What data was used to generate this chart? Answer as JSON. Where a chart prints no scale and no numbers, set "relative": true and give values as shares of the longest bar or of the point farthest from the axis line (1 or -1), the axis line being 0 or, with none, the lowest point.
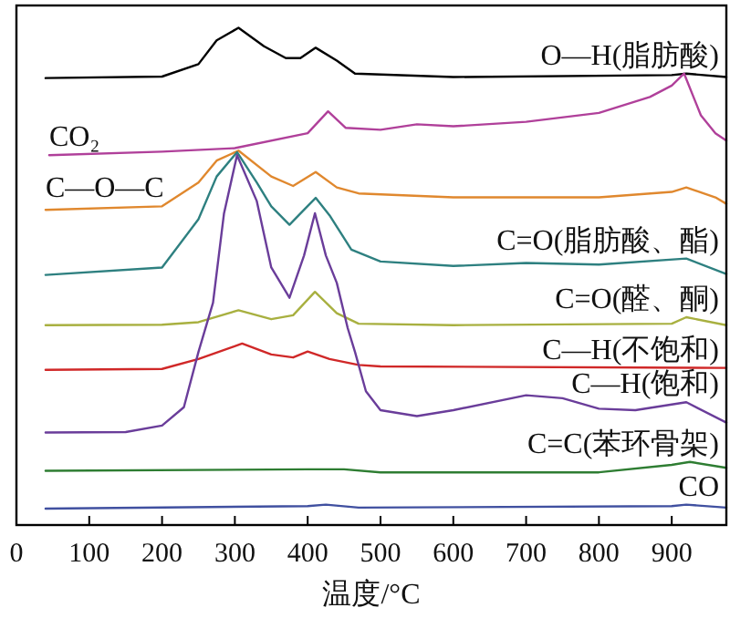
{
  "chart_data": {
    "type": "line",
    "relative": true,
    "xlabel": "温度/°C",
    "xlim": [
      0,
      975
    ],
    "xticks": [
      0,
      100,
      200,
      300,
      400,
      500,
      600,
      700,
      800,
      900
    ],
    "marker": "none",
    "line_style": "solid",
    "series": [
      {
        "name": "O—H(脂肪酸)",
        "color": "#000000",
        "x": [
          40,
          200,
          250,
          275,
          305,
          340,
          370,
          390,
          411,
          440,
          465,
          600,
          900,
          920,
          975
        ],
        "values": [
          0.899,
          0.902,
          0.927,
          0.975,
          1.0,
          0.963,
          0.939,
          0.939,
          0.96,
          0.934,
          0.908,
          0.901,
          0.905,
          0.908,
          0.901
        ]
      },
      {
        "name": "CO₂",
        "color": "#b0409a",
        "x": [
          45,
          200,
          300,
          400,
          428,
          452,
          500,
          550,
          600,
          700,
          800,
          870,
          900,
          917,
          940,
          960,
          975
        ],
        "values": [
          0.744,
          0.751,
          0.758,
          0.788,
          0.832,
          0.799,
          0.795,
          0.806,
          0.802,
          0.811,
          0.829,
          0.861,
          0.884,
          0.908,
          0.824,
          0.788,
          0.773
        ]
      },
      {
        "name": "C—O—C",
        "color": "#e0882e",
        "x": [
          40,
          200,
          250,
          275,
          305,
          350,
          380,
          411,
          440,
          470,
          600,
          800,
          900,
          920,
          960,
          975
        ],
        "values": [
          0.634,
          0.641,
          0.689,
          0.733,
          0.753,
          0.701,
          0.682,
          0.71,
          0.679,
          0.667,
          0.659,
          0.659,
          0.67,
          0.679,
          0.659,
          0.646
        ]
      },
      {
        "name": "C=O(脂肪酸、酯)",
        "color": "#2e8080",
        "x": [
          40,
          200,
          250,
          275,
          303,
          330,
          350,
          375,
          395,
          411,
          430,
          460,
          500,
          600,
          700,
          800,
          920,
          975
        ],
        "values": [
          0.503,
          0.518,
          0.615,
          0.701,
          0.75,
          0.689,
          0.641,
          0.604,
          0.634,
          0.658,
          0.623,
          0.554,
          0.53,
          0.521,
          0.527,
          0.524,
          0.536,
          0.505
        ]
      },
      {
        "name": "C=O(醛、酮)",
        "color": "#a8b040",
        "x": [
          40,
          200,
          250,
          305,
          350,
          380,
          410,
          440,
          470,
          600,
          900,
          920,
          975
        ],
        "values": [
          0.402,
          0.403,
          0.408,
          0.432,
          0.414,
          0.422,
          0.469,
          0.426,
          0.405,
          0.402,
          0.405,
          0.418,
          0.402
        ]
      },
      {
        "name": "C—H(不饱和)",
        "color": "#d02828",
        "x": [
          40,
          200,
          250,
          310,
          350,
          380,
          400,
          430,
          470,
          500,
          975
        ],
        "values": [
          0.312,
          0.314,
          0.334,
          0.365,
          0.343,
          0.337,
          0.349,
          0.334,
          0.322,
          0.319,
          0.316
        ]
      },
      {
        "name": "C—H(饱和)",
        "color": "#6a3d9a",
        "x": [
          40,
          150,
          200,
          230,
          250,
          270,
          285,
          303,
          330,
          350,
          375,
          395,
          410,
          425,
          440,
          455,
          465,
          480,
          500,
          550,
          600,
          700,
          750,
          800,
          850,
          920,
          975
        ],
        "values": [
          0.186,
          0.187,
          0.2,
          0.237,
          0.348,
          0.447,
          0.626,
          0.744,
          0.652,
          0.518,
          0.457,
          0.542,
          0.627,
          0.542,
          0.487,
          0.396,
          0.348,
          0.269,
          0.231,
          0.219,
          0.231,
          0.261,
          0.255,
          0.234,
          0.231,
          0.247,
          0.206
        ]
      },
      {
        "name": "C=C(苯环骨架)",
        "color": "#2e7d32",
        "x": [
          40,
          400,
          450,
          500,
          800,
          900,
          925,
          975
        ],
        "values": [
          0.109,
          0.112,
          0.112,
          0.106,
          0.106,
          0.121,
          0.127,
          0.115
        ]
      },
      {
        "name": "CO",
        "color": "#4050a0",
        "x": [
          40,
          400,
          425,
          470,
          900,
          920,
          975
        ],
        "values": [
          0.033,
          0.038,
          0.041,
          0.035,
          0.038,
          0.041,
          0.035
        ]
      }
    ]
  }
}
